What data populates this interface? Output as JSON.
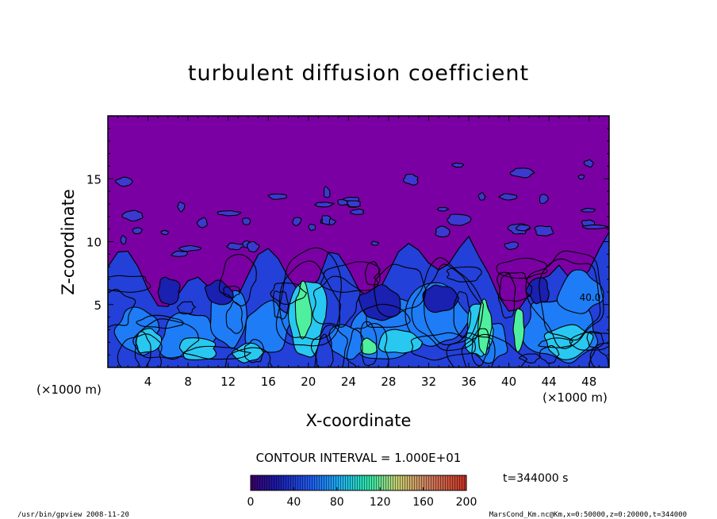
{
  "chart_data": {
    "type": "heatmap",
    "title": "turbulent diffusion coefficient",
    "xlabel": "X-coordinate",
    "ylabel": "Z-coordinate",
    "x_unit": "(×1000 m)",
    "y_unit": "(×1000 m)",
    "xlim": [
      0,
      50
    ],
    "ylim": [
      0,
      20
    ],
    "x_ticks": [
      4,
      8,
      12,
      16,
      20,
      24,
      28,
      32,
      36,
      40,
      44,
      48
    ],
    "y_ticks": [
      5,
      10,
      15
    ],
    "contour_interval_label": "CONTOUR INTERVAL = 1.000E+01",
    "colorbar": {
      "min": 0,
      "max": 200,
      "ticks": [
        0,
        40,
        80,
        120,
        160,
        200
      ]
    },
    "time_label": "t=344000 s",
    "contour_labels": [
      {
        "text": "40.0",
        "x": 48.1,
        "z": 5.3
      }
    ]
  },
  "footer": {
    "left": "/usr/bin/gpview   2008-11-20",
    "right": "MarsCond_Km.nc@Km,x=0:50000,z=0:20000,t=344000"
  },
  "colors": {
    "background_field": "#7b00a3",
    "low_blue": "#1f3fe0",
    "mid_blue": "#1e88ff",
    "cyan": "#28c8f0",
    "green": "#4ef0a0"
  }
}
